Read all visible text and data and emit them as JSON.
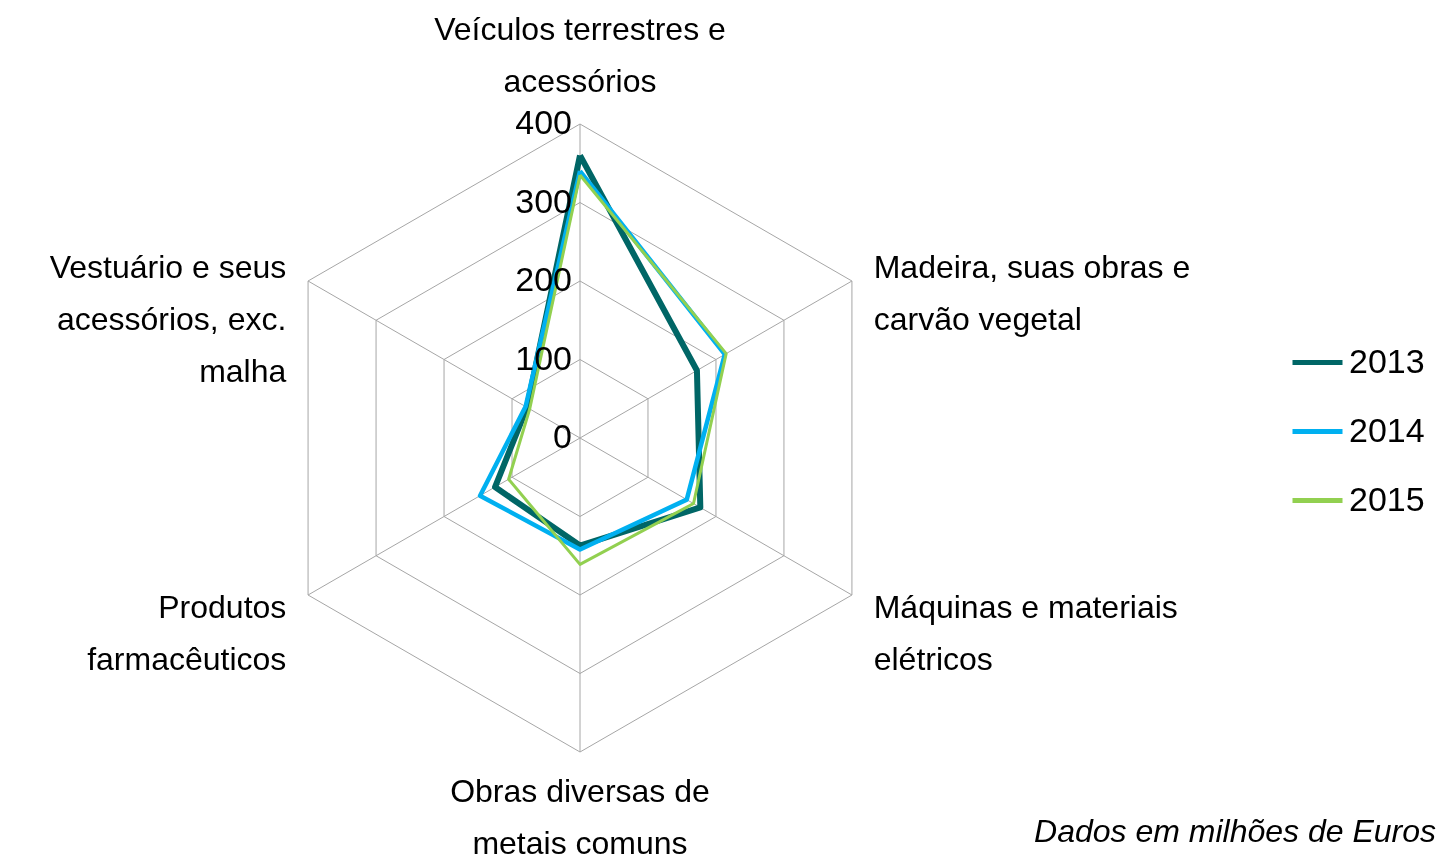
{
  "chart_data": {
    "type": "radar",
    "categories": [
      "Veículos terrestres e acessórios",
      "Madeira, suas obras e carvão vegetal",
      "Máquinas e materiais elétricos",
      "Obras diversas de metais comuns",
      "Produtos farmacêuticos",
      "Vestuário e seus acessórios, exc. malha"
    ],
    "series": [
      {
        "name": "2013",
        "color": "#006666",
        "values": [
          360,
          172,
          177,
          137,
          125,
          78
        ]
      },
      {
        "name": "2014",
        "color": "#00b0f0",
        "values": [
          340,
          213,
          157,
          142,
          147,
          80
        ]
      },
      {
        "name": "2015",
        "color": "#92d050",
        "values": [
          335,
          215,
          167,
          161,
          105,
          74
        ]
      }
    ],
    "ylim": [
      0,
      400
    ],
    "yticks": [
      0,
      100,
      200,
      300,
      400
    ],
    "grid": true,
    "legend": "right",
    "annotations": [
      "Dados em milhões de Euros"
    ]
  }
}
